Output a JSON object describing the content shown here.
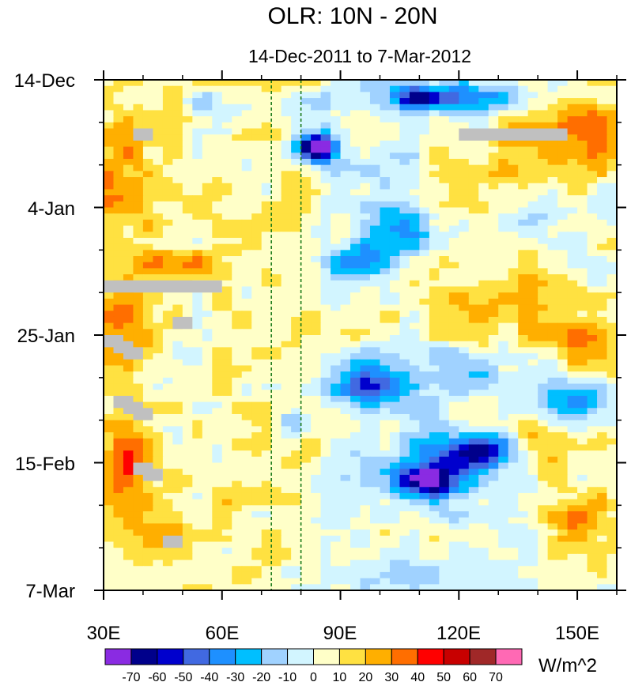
{
  "chart_data": {
    "type": "heatmap",
    "title": "OLR: 10N - 20N",
    "subtitle": "14-Dec-2011 to 7-Mar-2012",
    "x_axis": {
      "range": [
        30,
        160
      ],
      "ticks": [
        30,
        60,
        90,
        120,
        150
      ],
      "tick_labels": [
        "30E",
        "60E",
        "90E",
        "120E",
        "150E"
      ],
      "minor_step": 10
    },
    "y_axis": {
      "range_days": [
        0,
        84
      ],
      "reversed": true,
      "ticks": [
        0,
        21,
        42,
        63,
        84
      ],
      "tick_labels": [
        "14-Dec",
        "4-Jan",
        "25-Jan",
        "15-Feb",
        "7-Mar"
      ],
      "minor_step": 7
    },
    "reference_lines_lon": [
      72.5,
      80
    ],
    "colorbar": {
      "units": "W/m^2",
      "levels": [
        -70,
        -60,
        -50,
        -40,
        -30,
        -20,
        -10,
        0,
        10,
        20,
        30,
        40,
        50,
        60,
        70
      ],
      "level_labels": [
        "-70",
        "-60",
        "-50",
        "-40",
        "-30",
        "-20",
        "-10",
        "0",
        "10",
        "20",
        "30",
        "40",
        "50",
        "60",
        "70"
      ],
      "colors": [
        "#8a2be2",
        "#00008b",
        "#0000cd",
        "#4169e1",
        "#1e90ff",
        "#00bfff",
        "#a0d2ff",
        "#d2f5ff",
        "#ffffc8",
        "#ffe141",
        "#ffaf00",
        "#ff6e00",
        "#ff0000",
        "#c80000",
        "#a02828",
        "#ff69b4"
      ]
    },
    "missing_color": "#c0c0c0",
    "grid_lon_step": 2.5,
    "grid_day_step": 1,
    "features": [
      {
        "lon": 110,
        "day": 3,
        "value": -40,
        "wlon": 7,
        "wday": 1.8
      },
      {
        "lon": 115,
        "day": 3,
        "value": -25,
        "wlon": 16,
        "wday": 3
      },
      {
        "lon": 128,
        "day": 3,
        "value": -20,
        "wlon": 8,
        "wday": 2.5
      },
      {
        "lon": 56,
        "day": 4,
        "value": -22,
        "wlon": 5,
        "wday": 1.8
      },
      {
        "lon": 84,
        "day": 11,
        "value": -72,
        "wlon": 4,
        "wday": 2
      },
      {
        "lon": 84,
        "day": 11,
        "value": -32,
        "wlon": 8,
        "wday": 3.8
      },
      {
        "lon": 82,
        "day": 4,
        "value": -14,
        "wlon": 9,
        "wday": 2
      },
      {
        "lon": 103,
        "day": 15,
        "value": -14,
        "wlon": 12,
        "wday": 3
      },
      {
        "lon": 140,
        "day": 11,
        "value": 22,
        "wlon": 14,
        "wday": 7
      },
      {
        "lon": 152,
        "day": 8,
        "value": 27,
        "wlon": 10,
        "wday": 6
      },
      {
        "lon": 105,
        "day": 25,
        "value": -38,
        "wlon": 10,
        "wday": 4
      },
      {
        "lon": 95,
        "day": 30,
        "value": -34,
        "wlon": 9,
        "wday": 3
      },
      {
        "lon": 140,
        "day": 23,
        "value": -15,
        "wlon": 12,
        "wday": 3
      },
      {
        "lon": 120,
        "day": 18,
        "value": 18,
        "wlon": 14,
        "wday": 5
      },
      {
        "lon": 50,
        "day": 30,
        "value": 17,
        "wlon": 15,
        "wday": 3
      },
      {
        "lon": 98,
        "day": 50,
        "value": -42,
        "wlon": 12,
        "wday": 3.8
      },
      {
        "lon": 120,
        "day": 48,
        "value": -17,
        "wlon": 20,
        "wday": 4
      },
      {
        "lon": 150,
        "day": 53,
        "value": -30,
        "wlon": 12,
        "wday": 3.5
      },
      {
        "lon": 130,
        "day": 37,
        "value": 22,
        "wlon": 16,
        "wday": 6
      },
      {
        "lon": 150,
        "day": 43,
        "value": 25,
        "wlon": 10,
        "wday": 5
      },
      {
        "lon": 78,
        "day": 56,
        "value": -22,
        "wlon": 5,
        "wday": 2.5
      },
      {
        "lon": 112,
        "day": 66,
        "value": -62,
        "wlon": 8,
        "wday": 2.5
      },
      {
        "lon": 125,
        "day": 61,
        "value": -50,
        "wlon": 10,
        "wday": 3
      },
      {
        "lon": 115,
        "day": 64,
        "value": -28,
        "wlon": 18,
        "wday": 6
      },
      {
        "lon": 140,
        "day": 60,
        "value": 20,
        "wlon": 12,
        "wday": 5
      },
      {
        "lon": 105,
        "day": 81,
        "value": -22,
        "wlon": 10,
        "wday": 2.5
      },
      {
        "lon": 150,
        "day": 73,
        "value": 25,
        "wlon": 10,
        "wday": 7
      },
      {
        "lon": 35,
        "day": 14,
        "value": 18,
        "wlon": 8,
        "wday": 10
      },
      {
        "lon": 35,
        "day": 40,
        "value": 22,
        "wlon": 7,
        "wday": 9
      },
      {
        "lon": 35,
        "day": 64,
        "value": 28,
        "wlon": 6,
        "wday": 8
      },
      {
        "lon": 42,
        "day": 75,
        "value": 18,
        "wlon": 8,
        "wday": 6
      }
    ],
    "missing_regions": [
      {
        "lon": [
          37.5,
          42.5
        ],
        "day": [
          8,
          10
        ]
      },
      {
        "lon": [
          120,
          147.5
        ],
        "day": [
          8,
          10
        ]
      },
      {
        "lon": [
          30,
          60
        ],
        "day": [
          33,
          35
        ]
      },
      {
        "lon": [
          47.5,
          52.5
        ],
        "day": [
          39,
          41
        ]
      },
      {
        "lon": [
          30,
          35
        ],
        "day": [
          42,
          44
        ]
      },
      {
        "lon": [
          32.5,
          37.5
        ],
        "day": [
          43,
          45
        ]
      },
      {
        "lon": [
          35,
          40
        ],
        "day": [
          44,
          46
        ]
      },
      {
        "lon": [
          32.5,
          37.5
        ],
        "day": [
          52,
          54
        ]
      },
      {
        "lon": [
          35,
          40
        ],
        "day": [
          53,
          55
        ]
      },
      {
        "lon": [
          37.5,
          42.5
        ],
        "day": [
          54,
          56
        ]
      },
      {
        "lon": [
          37.5,
          42.5
        ],
        "day": [
          63,
          65
        ]
      },
      {
        "lon": [
          40,
          45
        ],
        "day": [
          64,
          66
        ]
      },
      {
        "lon": [
          45,
          50
        ],
        "day": [
          75,
          77
        ]
      }
    ]
  }
}
